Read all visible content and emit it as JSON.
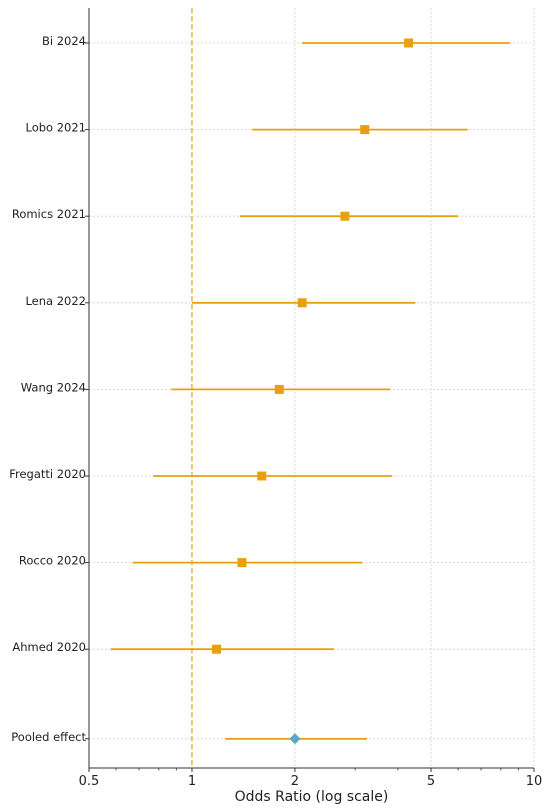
{
  "chart_data": {
    "type": "forest",
    "xlabel": "Odds Ratio (log scale)",
    "x_scale": "log",
    "xlim": [
      0.5,
      10
    ],
    "x_ticks": [
      0.5,
      1,
      2,
      5,
      10
    ],
    "x_tick_labels": [
      "0.5",
      "1",
      "2",
      "5",
      "10"
    ],
    "reference_line": 1,
    "grid": true,
    "colors": {
      "study": "#E8A010",
      "pooled": "#5AA7C8",
      "reference": "#E8A010",
      "grid": "#cfcfcf",
      "axis": "#333333"
    },
    "studies": [
      {
        "label": "Bi 2024",
        "or": 4.3,
        "ci_low": 2.1,
        "ci_high": 8.5
      },
      {
        "label": "Lobo 2021",
        "or": 3.2,
        "ci_low": 1.5,
        "ci_high": 6.4
      },
      {
        "label": "Romics 2021",
        "or": 2.8,
        "ci_low": 1.38,
        "ci_high": 6.0
      },
      {
        "label": "Lena 2022",
        "or": 2.1,
        "ci_low": 1.0,
        "ci_high": 4.5
      },
      {
        "label": "Wang 2024",
        "or": 1.8,
        "ci_low": 0.87,
        "ci_high": 3.8
      },
      {
        "label": "Fregatti 2020",
        "or": 1.6,
        "ci_low": 0.77,
        "ci_high": 3.85
      },
      {
        "label": "Rocco 2020",
        "or": 1.4,
        "ci_low": 0.67,
        "ci_high": 3.15
      },
      {
        "label": "Ahmed 2020",
        "or": 1.18,
        "ci_low": 0.58,
        "ci_high": 2.6
      }
    ],
    "pooled": {
      "label": "Pooled effect",
      "or": 2.0,
      "ci_low": 1.25,
      "ci_high": 3.25
    }
  }
}
